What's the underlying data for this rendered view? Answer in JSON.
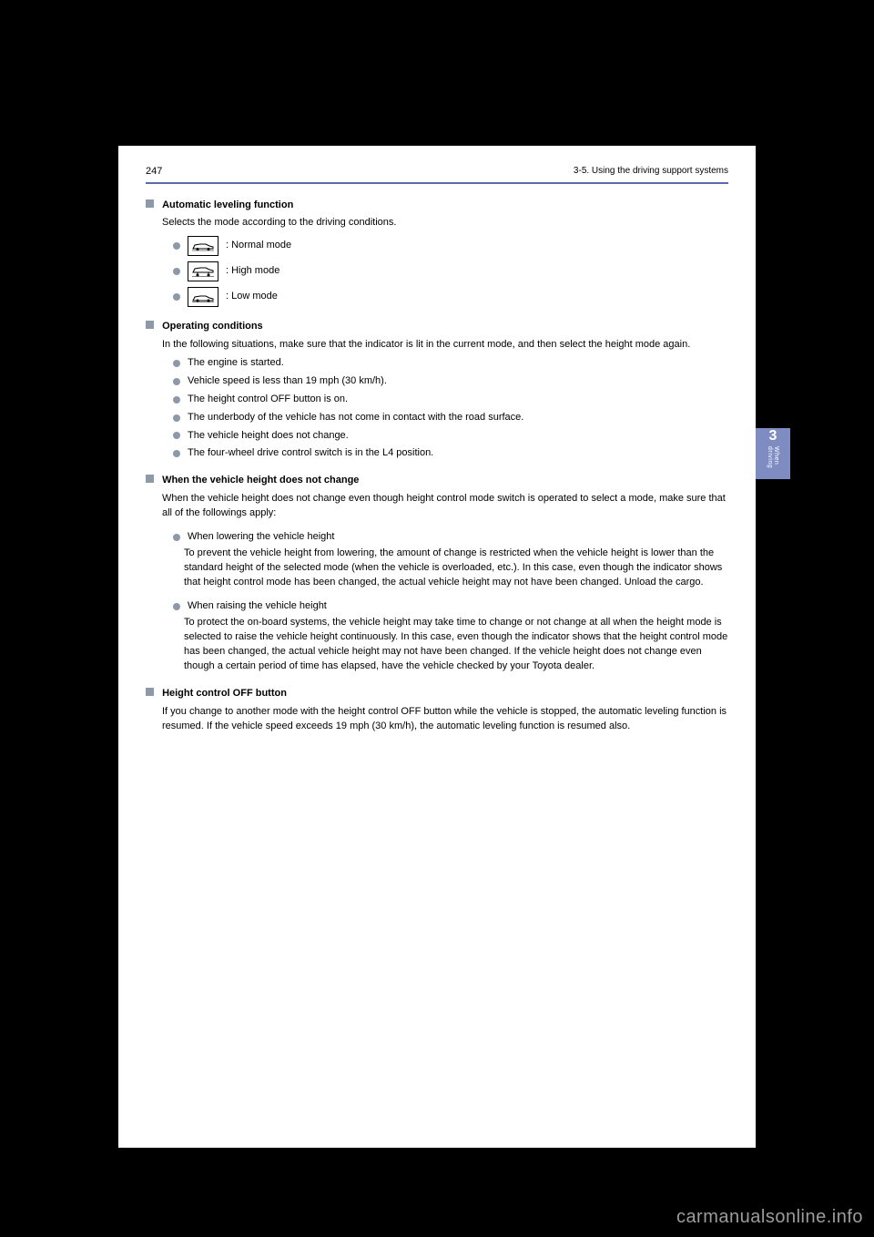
{
  "header": {
    "page_num": "247",
    "breadcrumb": "3-5. Using the driving support systems",
    "section_num": "3",
    "section_label": "When driving"
  },
  "s1": {
    "title": "Automatic leveling function",
    "sub": "Selects the mode according to the driving conditions.",
    "items": [
      {
        "line": "         : Normal mode",
        "variant": "mid"
      },
      {
        "line": "         : High mode",
        "variant": "high"
      },
      {
        "line": "         : Low mode",
        "variant": "low"
      }
    ]
  },
  "s2": {
    "title": "Operating conditions",
    "lead": "In the following situations, make sure that the indicator is lit in the current mode, and then select the height mode again.",
    "bullets": [
      "The engine is started.",
      "Vehicle speed is less than 19 mph (30 km/h).",
      "The height control OFF button is on.",
      "The underbody of the vehicle has not come in contact with the road surface.",
      "The vehicle height does not change.",
      "The four-wheel drive control switch is in the L4 position."
    ]
  },
  "s3": {
    "title": "When the vehicle height does not change",
    "lead": "When the vehicle height does not change even though height control mode switch is operated to select a mode, make sure that all of the followings apply:",
    "items": [
      {
        "head": "When lowering the vehicle height",
        "body": "To prevent the vehicle height from lowering, the amount of change is restricted when the vehicle height is lower than the standard height of the selected mode (when the vehicle is overloaded, etc.). In this case, even though the indicator shows that height control mode has been changed, the actual vehicle height may not have been changed. Unload the cargo."
      },
      {
        "head": "When raising the vehicle height",
        "body": "To protect the on-board systems, the vehicle height may take time to change or not change at all when the height mode is selected to raise the vehicle height continuously. In this case, even though the indicator shows that the height control mode has been changed, the actual vehicle height may not have been changed. If the vehicle height does not change even though a certain period of time has elapsed, have the vehicle checked by your Toyota dealer."
      }
    ]
  },
  "s4": {
    "title": "Height control OFF button",
    "body": "If you change to another mode with the height control OFF button while the vehicle is stopped, the automatic leveling function is resumed. If the vehicle speed exceeds 19 mph (30 km/h), the automatic leveling function is resumed also."
  },
  "watermark": "carmanualsonline.info"
}
